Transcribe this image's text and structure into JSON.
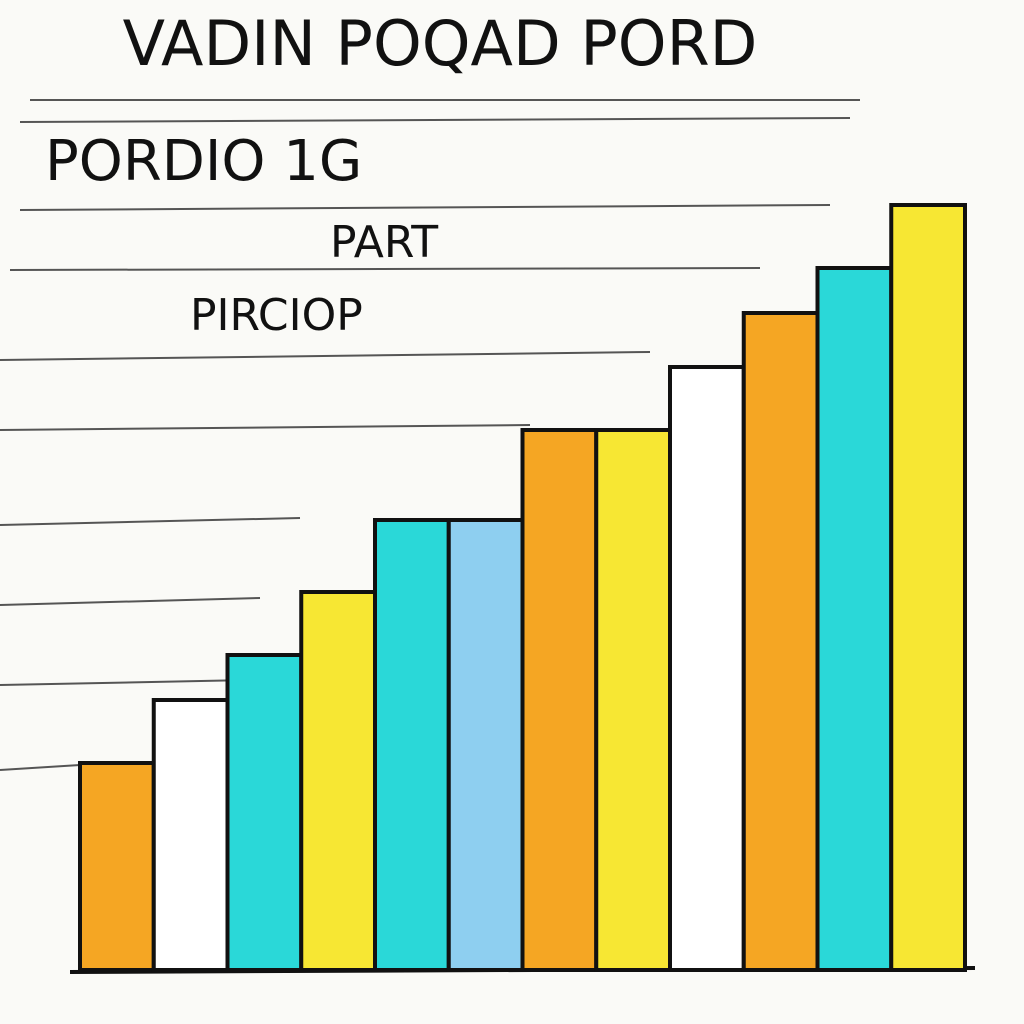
{
  "chart_data": {
    "type": "bar",
    "title": "VADIN POQAD PORD",
    "subtitle": "PORDIO 1G",
    "annotations": [
      "PART",
      "PIRCIOP"
    ],
    "categories": [
      null,
      null,
      null,
      null,
      null,
      null,
      null,
      null,
      null,
      null,
      null,
      null
    ],
    "values": [
      23,
      30,
      35,
      42,
      50,
      50,
      60,
      60,
      67,
      73,
      78,
      85
    ],
    "colors": [
      "#f5a623",
      "#ffffff",
      "#2ad8d8",
      "#f7e733",
      "#2ad8d8",
      "#8ecff0",
      "#f5a623",
      "#f7e733",
      "#ffffff",
      "#f5a623",
      "#2ad8d8",
      "#f7e733"
    ],
    "ylim": [
      0,
      100
    ],
    "grid": false
  }
}
